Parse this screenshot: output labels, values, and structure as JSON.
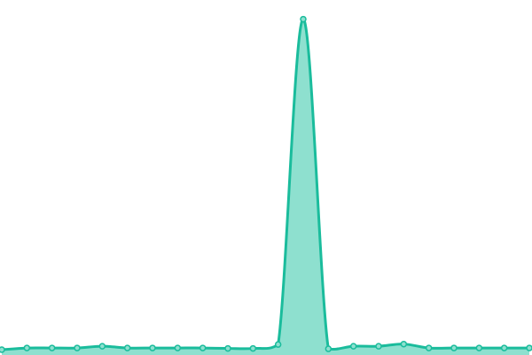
{
  "chart_data": {
    "type": "area",
    "x": [
      0,
      1,
      2,
      3,
      4,
      5,
      6,
      7,
      8,
      9,
      10,
      11,
      12,
      13,
      14,
      15,
      16,
      17,
      18,
      19,
      20,
      21
    ],
    "series": [
      {
        "values": [
          1,
          3,
          3,
          3,
          5,
          3,
          3,
          3,
          3,
          2.5,
          2.5,
          7,
          383,
          2,
          5,
          5,
          7.5,
          3,
          3,
          3,
          3,
          3
        ]
      }
    ],
    "ylim": [
      0,
      400
    ],
    "grid": false,
    "axes_visible": false,
    "smooth": true,
    "colors": {
      "line": "#1abc9c",
      "fill": "#8ee0cf",
      "point": "#8ee0cf"
    }
  }
}
